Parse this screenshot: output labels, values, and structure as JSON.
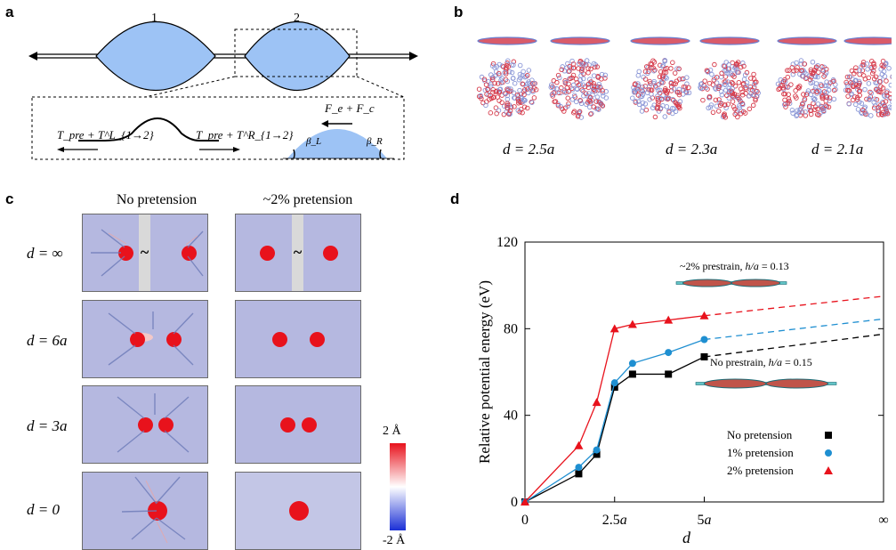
{
  "panels": {
    "a": "a",
    "b": "b",
    "c": "c",
    "d": "d"
  },
  "panel_a": {
    "bubble_labels": [
      "1",
      "2"
    ],
    "left_tension": "T_pre + T^L_{1→2}",
    "right_tension": "T_pre + T^R_{1→2}",
    "force": "F_e + F_c",
    "beta_left": "β_L",
    "beta_right": "β_R"
  },
  "panel_b": {
    "separations": [
      "d = 2.5a",
      "d = 2.3a",
      "d = 2.1a"
    ]
  },
  "panel_c": {
    "columns": [
      "No pretension",
      "~2% pretension"
    ],
    "rows": [
      "d = ∞",
      "d = 6a",
      "d = 3a",
      "d = 0"
    ],
    "tilde": "~",
    "colorbar_max": "2 Å",
    "colorbar_min": "-2 Å",
    "colors": {
      "background": "#b5b8e0",
      "bubble": "#e8121c",
      "gap": "#d9d9d9"
    }
  },
  "chart_data": {
    "type": "line",
    "xlabel": "d",
    "ylabel": "Relative potential energy (eV)",
    "xtick_labels": [
      "0",
      "2.5a",
      "5a",
      "∞"
    ],
    "xtick_values": [
      0,
      2.5,
      5,
      10
    ],
    "ylim": [
      0,
      120
    ],
    "yticks": [
      0,
      40,
      80,
      120
    ],
    "legend_position": "bottom-right",
    "series": [
      {
        "name": "No pretension",
        "marker": "square",
        "color": "#000000",
        "x": [
          0,
          1.5,
          2,
          2.5,
          3,
          4,
          5
        ],
        "y": [
          0,
          13,
          22,
          53,
          59,
          59,
          67
        ],
        "dashed_to_infinity": 77.5
      },
      {
        "name": "1% pretension",
        "marker": "circle",
        "color": "#1f8fd1",
        "x": [
          0,
          1.5,
          2,
          2.5,
          3,
          4,
          5
        ],
        "y": [
          0,
          16,
          24,
          55,
          64,
          69,
          75
        ],
        "dashed_to_infinity": 84.5
      },
      {
        "name": "2% pretension",
        "marker": "triangle",
        "color": "#e8121c",
        "x": [
          0,
          1.5,
          2,
          2.5,
          3,
          4,
          5
        ],
        "y": [
          0,
          26,
          46,
          80,
          82,
          84,
          86
        ],
        "dashed_to_infinity": 95
      }
    ],
    "insets": [
      {
        "prefix": "~2% prestrain, ",
        "var": "h/a",
        "value": " = 0.13"
      },
      {
        "prefix": "No prestrain, ",
        "var": "h/a",
        "value": " = 0.15"
      }
    ]
  }
}
